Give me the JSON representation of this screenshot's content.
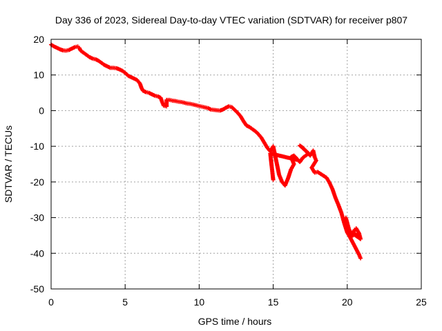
{
  "chart_data": {
    "type": "scatter",
    "title": "Day 336 of 2023, Sidereal Day-to-day VTEC variation (SDTVAR) for receiver p807",
    "xlabel": "GPS time / hours",
    "ylabel": "SDTVAR / TECUs",
    "xlim": [
      0,
      25
    ],
    "ylim": [
      -50,
      20
    ],
    "xticks": [
      0,
      5,
      10,
      15,
      20,
      25
    ],
    "yticks": [
      -50,
      -40,
      -30,
      -20,
      -10,
      0,
      10,
      20
    ],
    "grid": true,
    "marker": "+",
    "series": [
      {
        "name": "SDTVAR",
        "color": "#ff0000",
        "points": [
          [
            0.0,
            18.5
          ],
          [
            0.2,
            18.0
          ],
          [
            0.4,
            17.6
          ],
          [
            0.6,
            17.2
          ],
          [
            0.8,
            16.9
          ],
          [
            1.0,
            16.8
          ],
          [
            1.2,
            17.0
          ],
          [
            1.4,
            17.4
          ],
          [
            1.6,
            17.8
          ],
          [
            1.8,
            18.0
          ],
          [
            1.9,
            17.6
          ],
          [
            2.0,
            16.8
          ],
          [
            2.2,
            16.2
          ],
          [
            2.4,
            15.6
          ],
          [
            2.6,
            15.0
          ],
          [
            2.8,
            14.6
          ],
          [
            3.0,
            14.4
          ],
          [
            3.2,
            14.0
          ],
          [
            3.4,
            13.4
          ],
          [
            3.6,
            12.8
          ],
          [
            3.8,
            12.4
          ],
          [
            4.0,
            12.0
          ],
          [
            4.2,
            12.0
          ],
          [
            4.4,
            11.9
          ],
          [
            4.6,
            11.6
          ],
          [
            4.8,
            11.2
          ],
          [
            5.0,
            10.6
          ],
          [
            5.2,
            9.8
          ],
          [
            5.4,
            9.4
          ],
          [
            5.6,
            9.0
          ],
          [
            5.8,
            8.6
          ],
          [
            6.0,
            7.6
          ],
          [
            6.1,
            6.4
          ],
          [
            6.2,
            5.6
          ],
          [
            6.4,
            5.2
          ],
          [
            6.6,
            5.0
          ],
          [
            6.8,
            4.6
          ],
          [
            7.0,
            4.2
          ],
          [
            7.2,
            4.0
          ],
          [
            7.4,
            3.6
          ],
          [
            7.5,
            2.4
          ],
          [
            7.6,
            1.4
          ],
          [
            7.8,
            1.2
          ],
          [
            7.8,
            3.0
          ],
          [
            8.0,
            3.0
          ],
          [
            8.2,
            2.8
          ],
          [
            8.4,
            2.7
          ],
          [
            8.6,
            2.5
          ],
          [
            8.8,
            2.4
          ],
          [
            9.0,
            2.2
          ],
          [
            9.2,
            2.0
          ],
          [
            9.4,
            1.9
          ],
          [
            9.6,
            1.7
          ],
          [
            9.8,
            1.5
          ],
          [
            10.0,
            1.3
          ],
          [
            10.2,
            1.1
          ],
          [
            10.4,
            0.9
          ],
          [
            10.6,
            0.7
          ],
          [
            10.8,
            0.3
          ],
          [
            11.0,
            0.2
          ],
          [
            11.2,
            0.1
          ],
          [
            11.4,
            0.0
          ],
          [
            11.6,
            0.3
          ],
          [
            11.8,
            0.8
          ],
          [
            12.0,
            1.2
          ],
          [
            12.2,
            1.0
          ],
          [
            12.4,
            0.2
          ],
          [
            12.6,
            -0.6
          ],
          [
            12.8,
            -1.6
          ],
          [
            13.0,
            -3.0
          ],
          [
            13.2,
            -4.2
          ],
          [
            13.4,
            -4.6
          ],
          [
            13.6,
            -5.2
          ],
          [
            13.8,
            -5.8
          ],
          [
            14.0,
            -6.6
          ],
          [
            14.2,
            -7.6
          ],
          [
            14.4,
            -9.0
          ],
          [
            14.6,
            -10.4
          ],
          [
            14.8,
            -11.4
          ],
          [
            15.0,
            -10.0
          ],
          [
            15.1,
            -12.0
          ],
          [
            15.2,
            -14.0
          ],
          [
            15.3,
            -16.0
          ],
          [
            15.4,
            -18.0
          ],
          [
            15.6,
            -20.0
          ],
          [
            15.8,
            -21.0
          ],
          [
            16.0,
            -19.0
          ],
          [
            16.2,
            -16.5
          ],
          [
            16.4,
            -15.0
          ],
          [
            16.2,
            -13.0
          ],
          [
            16.4,
            -12.6
          ],
          [
            16.8,
            -14.4
          ],
          [
            17.0,
            -13.2
          ],
          [
            17.2,
            -12.6
          ],
          [
            17.4,
            -12.0
          ],
          [
            16.8,
            -9.8
          ],
          [
            17.0,
            -10.4
          ],
          [
            17.5,
            -12.6
          ],
          [
            17.7,
            -11.2
          ],
          [
            17.8,
            -13.0
          ],
          [
            17.9,
            -14.0
          ],
          [
            17.6,
            -16.0
          ],
          [
            17.8,
            -17.4
          ],
          [
            18.0,
            -17.2
          ],
          [
            18.3,
            -18.0
          ],
          [
            18.6,
            -18.8
          ],
          [
            18.8,
            -20.2
          ],
          [
            19.0,
            -22.0
          ],
          [
            19.2,
            -24.4
          ],
          [
            19.4,
            -26.4
          ],
          [
            19.6,
            -28.6
          ],
          [
            19.8,
            -31.6
          ],
          [
            20.0,
            -34.2
          ],
          [
            20.2,
            -35.6
          ],
          [
            20.4,
            -37.2
          ],
          [
            20.6,
            -38.8
          ],
          [
            20.8,
            -40.4
          ],
          [
            20.9,
            -41.4
          ],
          [
            19.9,
            -30.0
          ],
          [
            20.1,
            -33.0
          ],
          [
            20.3,
            -35.4
          ],
          [
            20.5,
            -33.4
          ],
          [
            20.6,
            -33.0
          ],
          [
            20.8,
            -34.4
          ],
          [
            20.9,
            -36.0
          ],
          [
            20.2,
            -34.0
          ],
          [
            20.7,
            -35.0
          ],
          [
            15.0,
            -19.4
          ],
          [
            14.8,
            -12.0
          ],
          [
            16.6,
            -13.8
          ]
        ]
      }
    ]
  }
}
